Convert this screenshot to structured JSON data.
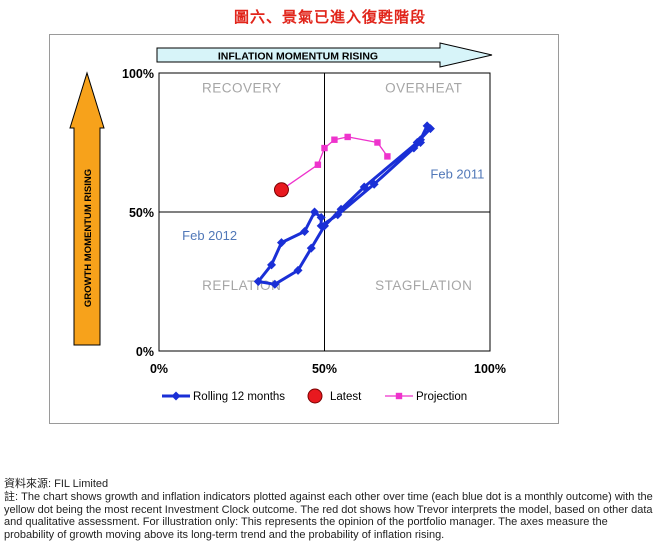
{
  "title": "圖六、景氣已進入復甦階段",
  "source": "資料來源: FIL Limited",
  "note": "註: The chart shows growth and inflation indicators plotted against each other over time (each blue dot is a monthly outcome) with the yellow dot being the most recent Investment Clock outcome. The red dot shows how Trevor interprets the model, based on other data and qualitative assessment. For illustration only: This represents the opinion of the portfolio manager. The axes measure the probability of growth moving above its long-term trend and the probability of inflation rising.",
  "chart_data": {
    "type": "line",
    "x_arrow_label": "INFLATION MOMENTUM RISING",
    "y_arrow_label": "GROWTH MOMENTUM RISING",
    "xlim": [
      0,
      100
    ],
    "ylim": [
      0,
      100
    ],
    "x_ticks": [
      "0%",
      "50%",
      "100%"
    ],
    "y_ticks": [
      "0%",
      "50%",
      "100%"
    ],
    "quadrants": [
      "RECOVERY",
      "OVERHEAT",
      "REFLATION",
      "STAGFLATION"
    ],
    "annotations": [
      {
        "text": "Feb 2011",
        "x": 82,
        "y": 62
      },
      {
        "text": "Feb 2012",
        "x": 7,
        "y": 40
      }
    ],
    "series": [
      {
        "name": "Rolling 12 months",
        "color": "#1a2fd6",
        "marker": "diamond",
        "points": [
          [
            81,
            81
          ],
          [
            79,
            76
          ],
          [
            79,
            75
          ],
          [
            77,
            73
          ],
          [
            65,
            60
          ],
          [
            54,
            49
          ],
          [
            49,
            45
          ],
          [
            49,
            48
          ],
          [
            47,
            50
          ],
          [
            44,
            43
          ],
          [
            37,
            39
          ],
          [
            34,
            31
          ],
          [
            30,
            25
          ],
          [
            35,
            24
          ],
          [
            42,
            29
          ],
          [
            46,
            37
          ],
          [
            50,
            45
          ],
          [
            55,
            51
          ],
          [
            62,
            59
          ],
          [
            78,
            75
          ],
          [
            82,
            80
          ]
        ]
      },
      {
        "name": "Latest",
        "color": "#e8191f",
        "marker": "circle",
        "points": [
          [
            37,
            58
          ]
        ]
      },
      {
        "name": "Projection",
        "color": "#ee33cc",
        "marker": "square",
        "points": [
          [
            37,
            58
          ],
          [
            48,
            67
          ],
          [
            50,
            73
          ],
          [
            53,
            76
          ],
          [
            57,
            77
          ],
          [
            66,
            75
          ],
          [
            69,
            70
          ]
        ]
      }
    ],
    "legend_position": "bottom",
    "grid": false,
    "colors": {
      "title": "#e1251b",
      "arrow_fill": "#d7f4f9",
      "up_arrow_fill": "#f7a21b",
      "quadrant_label": "#a6a6a6",
      "annotation": "#5178b8",
      "axis": "#000000"
    }
  }
}
